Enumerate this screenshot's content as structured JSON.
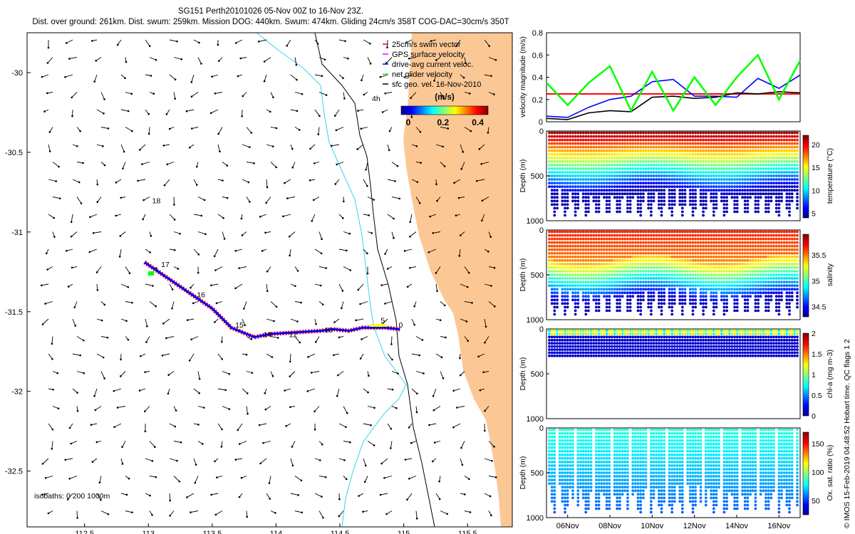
{
  "header": {
    "title_line1": "SG151 Perth20101026 05-Nov 00Z to 16-Nov 23Z.",
    "title_line2": "Dist. over ground: 261km. Dist. swum: 259km. Mission DOG: 440km. Swum: 474km. Gliding 24cm/s 358T COG-DAC=30cm/s 350T"
  },
  "credit": "© IMOS 15-Feb-2019 04:48:52 Hobart time. QC flags 1  2",
  "chart_data": [
    {
      "type": "map",
      "name": "trajectory-map",
      "xlim": [
        112.05,
        115.85
      ],
      "ylim": [
        -32.85,
        -29.75
      ],
      "x_ticks": [
        112.5,
        113,
        113.5,
        114,
        114.5,
        115,
        115.5
      ],
      "y_ticks": [
        -30,
        -30.5,
        -31,
        -31.5,
        -32,
        -32.5
      ],
      "legend": {
        "entries": [
          {
            "label": "25cm/s swim vector",
            "color": "#ff0000"
          },
          {
            "label": "GPS surface velocity",
            "color": "#ff00ff"
          },
          {
            "label": "drive-avg current veloc.",
            "color": "#0000ff"
          },
          {
            "label": "net glider velocity",
            "color": "#00ff00"
          },
          {
            "label": "sfc geo. vel. 16-Nov-2010",
            "color": "#000000"
          }
        ],
        "colorbar_label": "(m/s)",
        "colorbar_ticks": [
          "0",
          "0.2",
          "0.4"
        ],
        "colorbar_range": [
          0,
          0.5
        ],
        "note": "4h"
      },
      "isobaths_label": "isobaths: 0   200  1000m",
      "day_labels": [
        {
          "text": "18",
          "lon": 113.03,
          "lat": -30.82
        },
        {
          "text": "17",
          "lon": 113.1,
          "lat": -31.22
        },
        {
          "text": "16",
          "lon": 113.38,
          "lat": -31.41
        },
        {
          "text": "15",
          "lon": 113.68,
          "lat": -31.6
        },
        {
          "text": "14",
          "lon": 113.9,
          "lat": -31.66
        },
        {
          "text": "12",
          "lon": 114.1,
          "lat": -31.66
        },
        {
          "text": "10",
          "lon": 114.38,
          "lat": -31.63
        },
        {
          "text": "5",
          "lon": 114.82,
          "lat": -31.57
        },
        {
          "text": "0",
          "lon": 114.96,
          "lat": -31.6
        }
      ],
      "track": [
        {
          "lon": 112.97,
          "lat": -31.19
        },
        {
          "lon": 113.5,
          "lat": -31.48
        },
        {
          "lon": 113.65,
          "lat": -31.6
        },
        {
          "lon": 113.83,
          "lat": -31.66
        },
        {
          "lon": 113.95,
          "lat": -31.64
        },
        {
          "lon": 114.15,
          "lat": -31.63
        },
        {
          "lon": 114.35,
          "lat": -31.62
        },
        {
          "lon": 114.45,
          "lat": -31.61
        },
        {
          "lon": 114.57,
          "lat": -31.62
        },
        {
          "lon": 114.68,
          "lat": -31.6
        },
        {
          "lon": 114.85,
          "lat": -31.6
        },
        {
          "lon": 114.97,
          "lat": -31.61
        }
      ]
    },
    {
      "type": "line",
      "name": "velocity-panel",
      "ylabel": "velocity magnitude (m/s)",
      "ylim": [
        0,
        0.8
      ],
      "y_ticks": [
        "0",
        "0.2",
        "0.4",
        "0.6",
        "0.8"
      ],
      "x_days": [
        0,
        1,
        2,
        3,
        4,
        5,
        6,
        7,
        8,
        9,
        10,
        11,
        12
      ],
      "series": [
        {
          "color": "#ff0000",
          "values": [
            0.25,
            0.25,
            0.25,
            0.25,
            0.25,
            0.25,
            0.25,
            0.25,
            0.25,
            0.25,
            0.25,
            0.25,
            0.25
          ]
        },
        {
          "color": "#0000ff",
          "values": [
            0.05,
            0.04,
            0.13,
            0.2,
            0.23,
            0.36,
            0.38,
            0.23,
            0.23,
            0.22,
            0.39,
            0.3,
            0.42
          ]
        },
        {
          "color": "#000000",
          "values": [
            0.03,
            0.02,
            0.08,
            0.1,
            0.09,
            0.22,
            0.23,
            0.21,
            0.22,
            0.26,
            0.25,
            0.27,
            0.26
          ]
        },
        {
          "color": "#00ff00",
          "values": [
            0.35,
            0.15,
            0.35,
            0.5,
            0.1,
            0.45,
            0.1,
            0.4,
            0.15,
            0.4,
            0.6,
            0.2,
            0.55
          ]
        }
      ]
    },
    {
      "type": "heatmap",
      "name": "temperature-section",
      "ylabel": "Depth (m)",
      "y_ticks": [
        "0",
        "500",
        "1000"
      ],
      "colorbar_label": "temperature (°C)",
      "colorbar_ticks": [
        "20",
        "15",
        "10",
        "5"
      ],
      "colorbar_range": [
        4,
        22
      ]
    },
    {
      "type": "heatmap",
      "name": "salinity-section",
      "ylabel": "Depth (m)",
      "y_ticks": [
        "0",
        "500",
        "1000"
      ],
      "colorbar_label": "salinity",
      "colorbar_ticks": [
        "35.5",
        "35",
        "34.5"
      ],
      "colorbar_range": [
        34.3,
        35.9
      ]
    },
    {
      "type": "heatmap",
      "name": "chla-section",
      "ylabel": "Depth (m)",
      "y_ticks": [
        "0",
        "500",
        "1000"
      ],
      "colorbar_label": "chl-a (mg m-3)",
      "colorbar_ticks": [
        "2",
        "1.5",
        "1",
        "0.5",
        "0"
      ],
      "colorbar_range": [
        0,
        2
      ]
    },
    {
      "type": "heatmap",
      "name": "oxygen-section",
      "ylabel": "Depth (m)",
      "y_ticks": [
        "0",
        "500",
        "1000"
      ],
      "colorbar_label": "Ox. sat. ratio (%)",
      "colorbar_ticks": [
        "150",
        "100",
        "50"
      ],
      "colorbar_range": [
        25,
        170
      ]
    },
    {
      "type": "axis",
      "name": "time-axis",
      "x_ticks": [
        "06Nov",
        "08Nov",
        "10Nov",
        "12Nov",
        "14Nov",
        "16Nov"
      ],
      "x_tick_days": [
        1,
        3,
        5,
        7,
        9,
        11
      ]
    }
  ]
}
